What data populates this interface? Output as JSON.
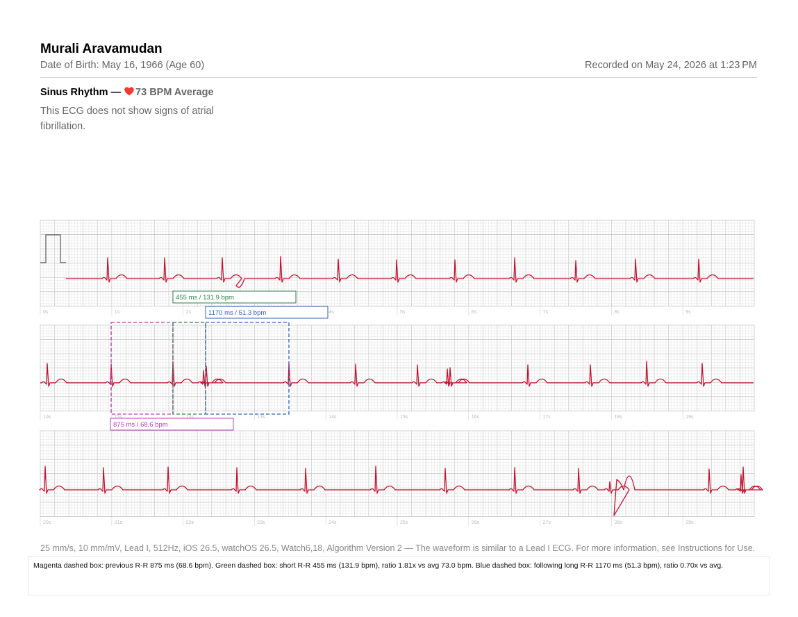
{
  "patient": {
    "name": "Murali Aravamudan",
    "dob_text": "Date of Birth: May 16, 1966 (Age 60)",
    "recorded_text": "Recorded on May 24, 2026 at 1:23 PM"
  },
  "classification": {
    "rhythm": "Sinus Rhythm —",
    "heart_icon": "heart-icon",
    "bpm_text": "73 BPM Average",
    "summary": "This ECG does not show signs of atrial fibrillation."
  },
  "ecg": {
    "strips": [
      {
        "id": "strip-1",
        "ticks": [
          "0s",
          "1s",
          "2s",
          "3s",
          "4s",
          "5s",
          "6s",
          "7s",
          "8s",
          "9s"
        ]
      },
      {
        "id": "strip-2",
        "ticks": [
          "10s",
          "11s",
          "12s",
          "13s",
          "14s",
          "15s",
          "16s",
          "17s",
          "18s",
          "19s"
        ]
      },
      {
        "id": "strip-3",
        "ticks": [
          "20s",
          "21s",
          "22s",
          "23s",
          "24s",
          "25s",
          "26s",
          "27s",
          "28s",
          "29s"
        ]
      }
    ],
    "annotations": [
      {
        "id": "short-rr",
        "label": "455 ms / 131.9 bpm",
        "color": "#2e7d46"
      },
      {
        "id": "long-rr",
        "label": "1170 ms / 51.3 bpm",
        "color": "#2f5fb4"
      },
      {
        "id": "previous-rr",
        "label": "875 ms / 68.6 bpm",
        "color": "#b43cb4"
      }
    ],
    "colors": {
      "trace": "#c8102e",
      "grid_minor": "#e6e6e6",
      "grid_major": "#c9c9c9",
      "label": "#bbbbbb"
    }
  },
  "footer": {
    "note": "25 mm/s, 10 mm/mV, Lead I, 512Hz, iOS 26.5, watchOS 26.5, Watch6,18, Algorithm Version 2 — The waveform is similar to a Lead I ECG. For more information, see Instructions for Use."
  },
  "annotation_note": "Magenta dashed box: previous R-R 875 ms (68.6 bpm). Green dashed box: short R-R 455 ms (131.9 bpm), ratio 1.81x vs avg 73.0 bpm. Blue dashed box: following long R-R 1170 ms (51.3 bpm), ratio 0.70x vs avg."
}
